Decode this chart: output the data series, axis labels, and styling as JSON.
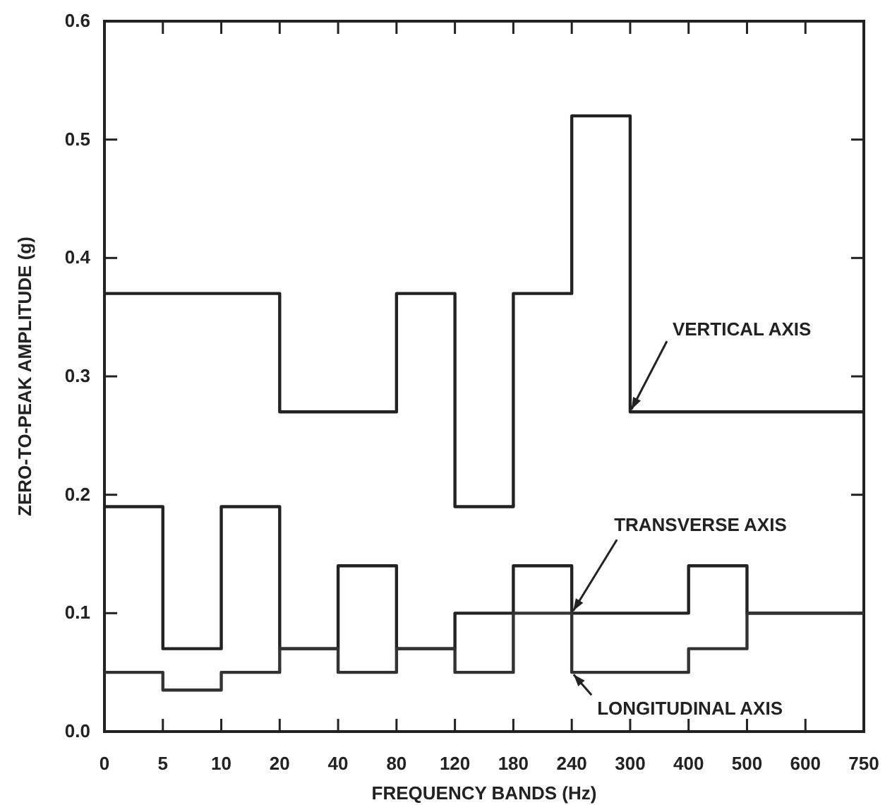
{
  "chart_data": {
    "type": "step",
    "xlabel": "FREQUENCY BANDS (Hz)",
    "ylabel": "ZERO-TO-PEAK AMPLITUDE (g)",
    "categories": [
      "0",
      "5",
      "10",
      "20",
      "40",
      "80",
      "120",
      "180",
      "240",
      "300",
      "400",
      "500",
      "600",
      "750"
    ],
    "ylim": [
      0,
      0.6
    ],
    "yticks": [
      {
        "value": 0,
        "label": "0.0"
      },
      {
        "value": 0.1,
        "label": "0.1"
      },
      {
        "value": 0.2,
        "label": "0.2"
      },
      {
        "value": 0.3,
        "label": "0.3"
      },
      {
        "value": 0.4,
        "label": "0.4"
      },
      {
        "value": 0.5,
        "label": "0.5"
      },
      {
        "value": 0.6,
        "label": "0.6"
      }
    ],
    "grid": false,
    "line_style": "solid",
    "marker": "none",
    "series": [
      {
        "color": "#222222",
        "values": [
          0.37,
          0.37,
          0.37,
          0.27,
          0.27,
          0.37,
          0.19,
          0.37,
          0.52,
          0.27,
          0.27,
          0.27,
          0.27,
          0.27
        ]
      },
      {
        "color": "#222222",
        "values": [
          0.19,
          0.07,
          0.19,
          0.07,
          0.14,
          0.07,
          0.1,
          0.14,
          0.1,
          0.1,
          0.14,
          0.1,
          0.1,
          0.1
        ]
      },
      {
        "color": "#333333",
        "values": [
          0.05,
          0.035,
          0.05,
          0.07,
          0.05,
          0.07,
          0.05,
          0.1,
          0.05,
          0.05,
          0.07,
          0.1,
          0.1,
          0.1
        ]
      }
    ],
    "annotations": [
      {
        "text": "VERTICAL AXIS",
        "x": "300",
        "y": 0.27
      },
      {
        "text": "TRANSVERSE AXIS",
        "x": "240",
        "y": 0.1
      },
      {
        "text": "LONGITUDINAL AXIS",
        "x": "240",
        "y": 0.05
      }
    ]
  }
}
